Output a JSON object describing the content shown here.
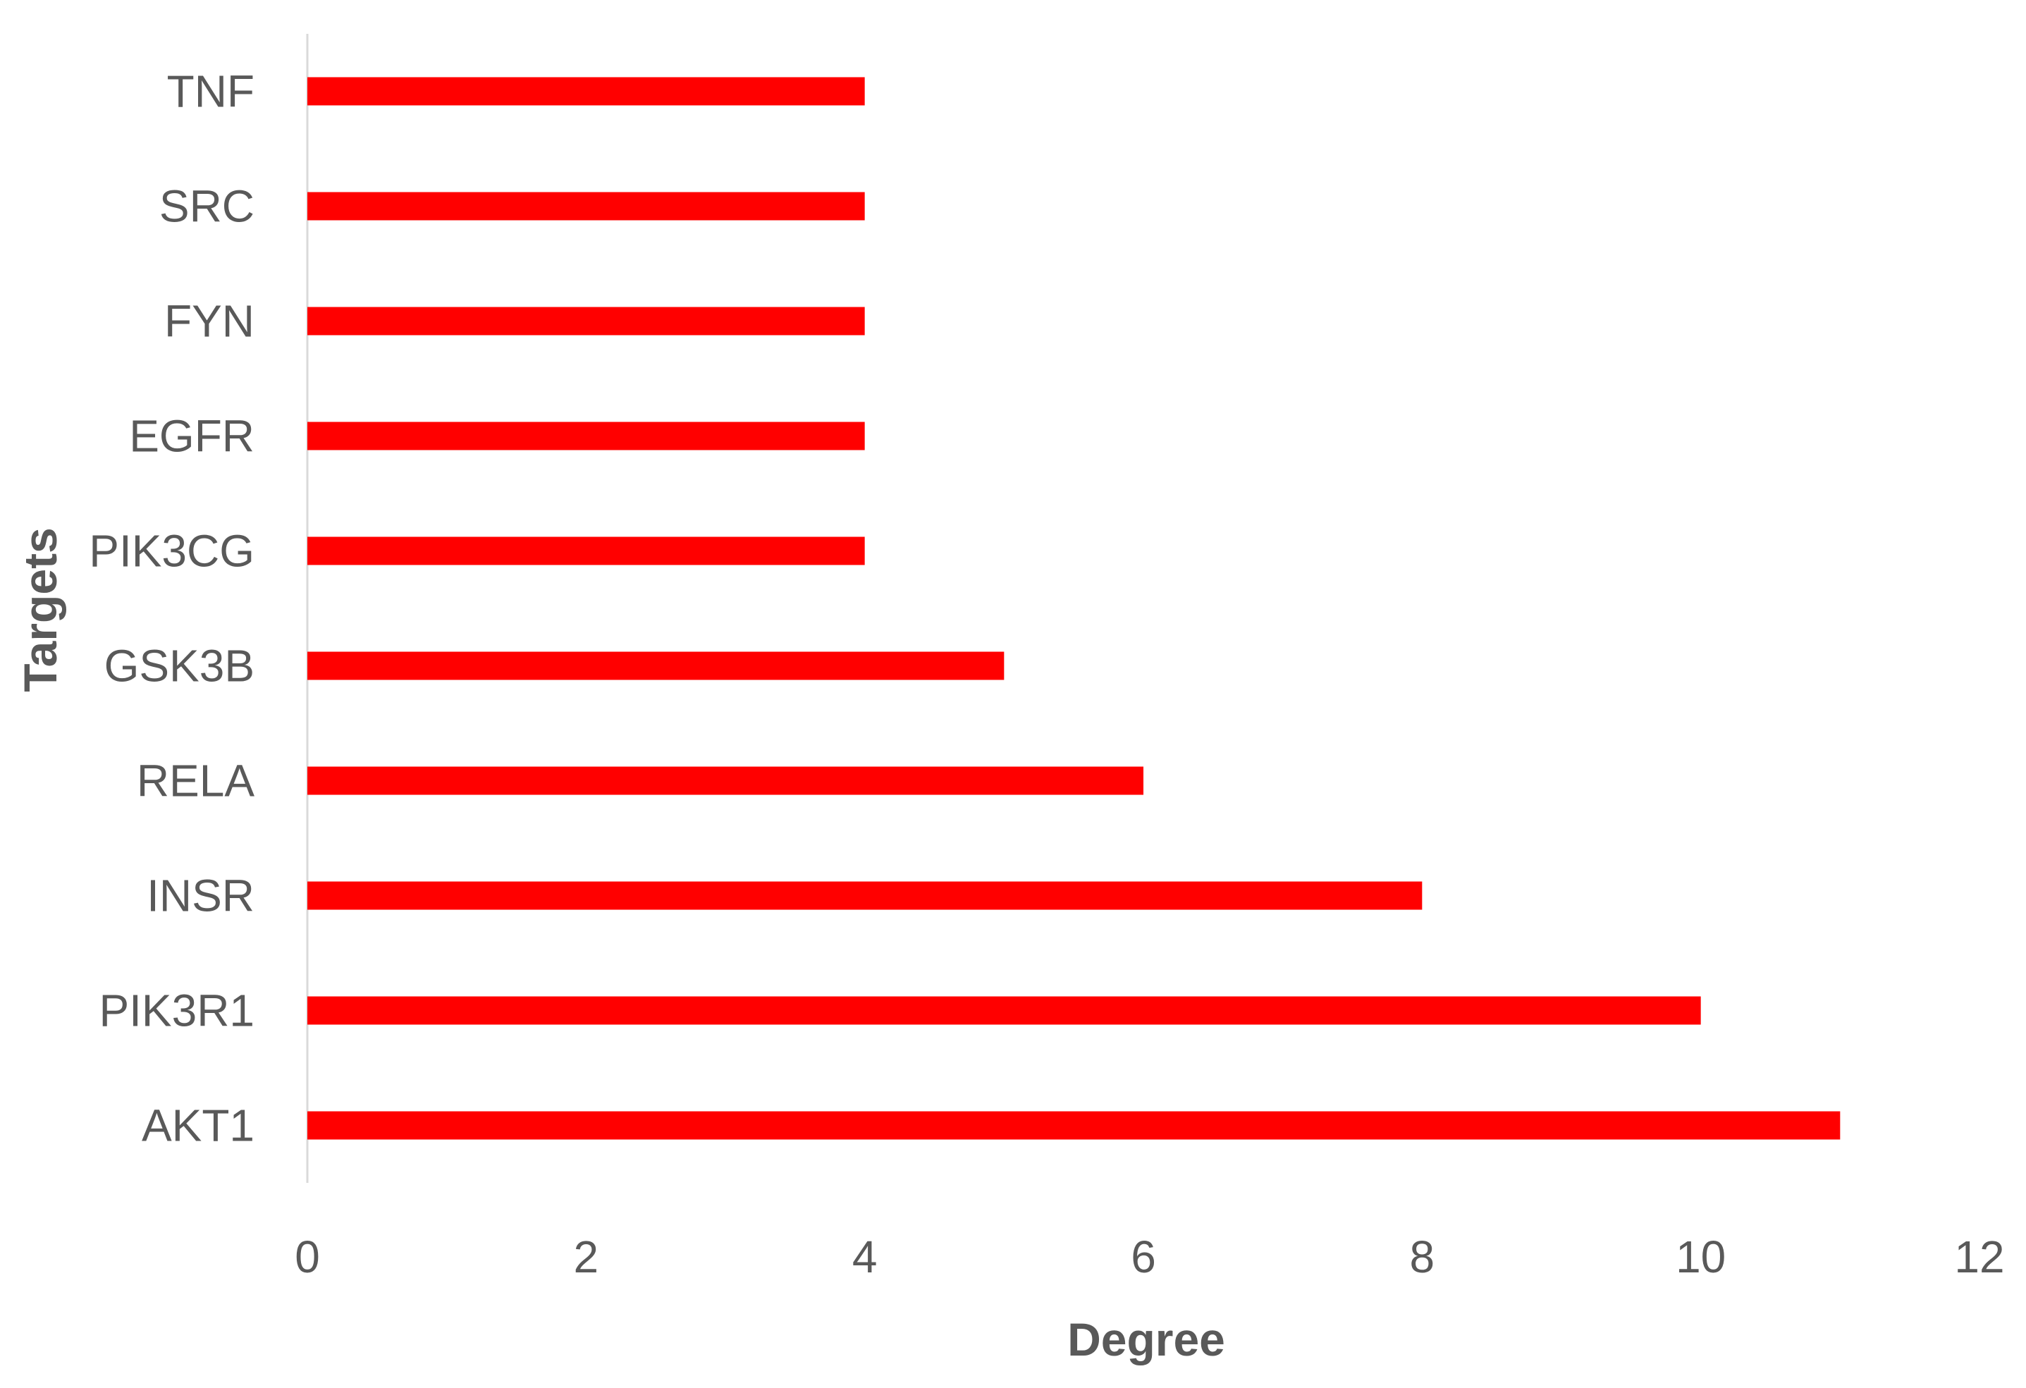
{
  "chart_data": {
    "type": "bar",
    "orientation": "horizontal",
    "categories": [
      "AKT1",
      "PIK3R1",
      "INSR",
      "RELA",
      "GSK3B",
      "PIK3CG",
      "EGFR",
      "FYN",
      "SRC",
      "TNF"
    ],
    "series": [
      {
        "values": [
          11,
          10,
          8,
          6,
          5,
          4,
          4,
          4,
          4,
          4
        ],
        "color": "#ff0000"
      }
    ],
    "xlabel": "Degree",
    "ylabel": "Targets",
    "xlim": [
      0,
      12
    ],
    "xticks": [
      "0",
      "2",
      "4",
      "6",
      "8",
      "10",
      "12"
    ],
    "grid": false,
    "legend": "none"
  }
}
